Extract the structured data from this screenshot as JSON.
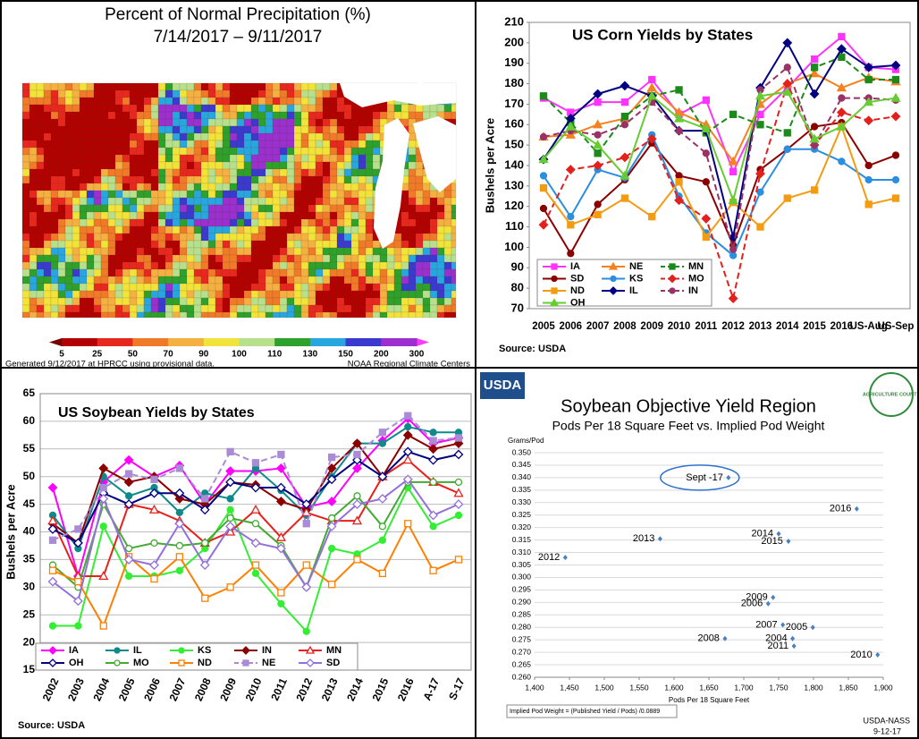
{
  "chart_data": [
    {
      "type": "map",
      "title": "Percent of Normal Precipitation (%)",
      "subtitle": "7/14/2017 – 9/11/2017",
      "colorbar": {
        "ticks": [
          5,
          25,
          50,
          70,
          90,
          100,
          110,
          130,
          150,
          200,
          300
        ],
        "colors": [
          "#7a0000",
          "#b30000",
          "#e8281e",
          "#f07a28",
          "#f5b042",
          "#f2e33a",
          "#b6e08c",
          "#2ea02c",
          "#27a6e0",
          "#3a3ad0",
          "#9b2fd0",
          "#ff38ff"
        ]
      },
      "footer_left": "Generated 9/12/2017 at HPRCC using provisional data.",
      "footer_right": "NOAA Regional Climate Centers"
    },
    {
      "type": "line",
      "title": "US Corn Yields by States",
      "y_label": "Bushels per Acre",
      "source": "Source: USDA",
      "categories": [
        "2005",
        "2006",
        "2007",
        "2008",
        "2009",
        "2010",
        "2011",
        "2012",
        "2013",
        "2014",
        "2015",
        "2016",
        "US-Aug",
        "US-Sep"
      ],
      "ylim": [
        70,
        210
      ],
      "yticks": [
        70,
        80,
        90,
        100,
        110,
        120,
        130,
        140,
        150,
        160,
        170,
        180,
        190,
        200,
        210
      ],
      "grid": false,
      "series": [
        {
          "name": "IA",
          "color": "#ff33ff",
          "marker": "square",
          "dash": false,
          "values": [
            173,
            166,
            171,
            171,
            182,
            165,
            172,
            137,
            165,
            178,
            192,
            203,
            188,
            187
          ]
        },
        {
          "name": "NE",
          "color": "#f58220",
          "marker": "triangle",
          "dash": false,
          "values": [
            154,
            155,
            160,
            163,
            178,
            166,
            160,
            142,
            170,
            180,
            185,
            178,
            183,
            181
          ]
        },
        {
          "name": "MN",
          "color": "#1a8a1a",
          "marker": "square",
          "dash": true,
          "values": [
            174,
            161,
            146,
            164,
            174,
            177,
            156,
            165,
            160,
            156,
            188,
            193,
            182,
            182
          ]
        },
        {
          "name": "SD",
          "color": "#8b0000",
          "marker": "circle",
          "dash": false,
          "values": [
            119,
            97,
            121,
            133,
            151,
            135,
            132,
            101,
            138,
            148,
            159,
            161,
            140,
            145
          ]
        },
        {
          "name": "KS",
          "color": "#2b8fe0",
          "marker": "circle",
          "dash": false,
          "values": [
            135,
            115,
            138,
            134,
            155,
            125,
            107,
            96,
            127,
            148,
            148,
            142,
            133,
            133
          ]
        },
        {
          "name": "MO",
          "color": "#e3201b",
          "marker": "diamond",
          "dash": true,
          "values": [
            111,
            138,
            140,
            144,
            153,
            123,
            114,
            75,
            136,
            180,
            150,
            166,
            162,
            164
          ]
        },
        {
          "name": "ND",
          "color": "#f39c12",
          "marker": "square",
          "dash": false,
          "values": [
            129,
            111,
            116,
            124,
            115,
            132,
            105,
            122,
            110,
            124,
            128,
            159,
            121,
            124
          ]
        },
        {
          "name": "IL",
          "color": "#000080",
          "marker": "diamond",
          "dash": false,
          "values": [
            143,
            163,
            175,
            179,
            174,
            157,
            157,
            105,
            178,
            200,
            175,
            197,
            188,
            189
          ]
        },
        {
          "name": "IN",
          "color": "#993366",
          "marker": "circle",
          "dash": true,
          "values": [
            154,
            157,
            155,
            160,
            171,
            157,
            146,
            99,
            177,
            188,
            150,
            173,
            173,
            172
          ]
        },
        {
          "name": "OH",
          "color": "#66cc33",
          "marker": "triangle",
          "dash": false,
          "values": [
            143,
            159,
            150,
            135,
            174,
            163,
            158,
            123,
            174,
            176,
            153,
            159,
            171,
            173
          ]
        }
      ]
    },
    {
      "type": "line",
      "title": "US Soybean Yields by States",
      "y_label": "Bushels per Acre",
      "source": "Source: USDA",
      "categories": [
        "2002",
        "2003",
        "2004",
        "2005",
        "2006",
        "2007",
        "2008",
        "2009",
        "2010",
        "2011",
        "2012",
        "2013",
        "2014",
        "2015",
        "2016",
        "A-17",
        "S-17"
      ],
      "ylim": [
        15,
        65
      ],
      "yticks": [
        15,
        20,
        25,
        30,
        35,
        40,
        45,
        50,
        55,
        60,
        65
      ],
      "grid": true,
      "series": [
        {
          "name": "IA",
          "color": "#ff00ff",
          "marker": "diamond",
          "dash": false,
          "values": [
            48,
            32,
            49,
            53,
            50,
            52,
            45,
            51,
            51,
            51.5,
            44.5,
            45.5,
            51.5,
            56.5,
            60.5,
            56,
            57
          ]
        },
        {
          "name": "IL",
          "color": "#0f8a8a",
          "marker": "circle",
          "dash": false,
          "values": [
            43,
            37,
            50,
            46.5,
            48,
            43.5,
            47,
            46,
            51.5,
            47.5,
            43,
            50,
            56,
            56,
            59,
            58,
            58
          ]
        },
        {
          "name": "KS",
          "color": "#33ee33",
          "marker": "circle",
          "dash": false,
          "values": [
            23,
            23,
            41,
            32,
            32,
            33,
            37,
            44,
            32.5,
            27,
            22,
            37,
            36,
            38.5,
            48,
            41,
            43
          ]
        },
        {
          "name": "IN",
          "color": "#8b0000",
          "marker": "diamond",
          "dash": false,
          "values": [
            41.5,
            38,
            51.5,
            49,
            50,
            46,
            45,
            49,
            48.5,
            45.5,
            44,
            51.5,
            56,
            50,
            57.5,
            55,
            56
          ]
        },
        {
          "name": "MN",
          "color": "#e8201a",
          "marker": "triangle",
          "dash": false,
          "values": [
            42,
            32,
            32,
            45,
            44,
            42,
            38,
            40,
            44,
            39,
            43.5,
            42,
            42,
            50,
            53,
            49,
            47
          ]
        },
        {
          "name": "OH",
          "color": "#000080",
          "marker": "diamond",
          "dash": false,
          "values": [
            40.5,
            38,
            47,
            45,
            47,
            47,
            44,
            49,
            48,
            48,
            45,
            49.5,
            53,
            50,
            54.5,
            53,
            54
          ]
        },
        {
          "name": "MO",
          "color": "#44aa33",
          "marker": "circle",
          "dash": false,
          "values": [
            34,
            30,
            45,
            37,
            38,
            37.5,
            38,
            42.5,
            41.5,
            37.5,
            30,
            42.5,
            46.5,
            41,
            49,
            49,
            49
          ]
        },
        {
          "name": "ND",
          "color": "#ff8000",
          "marker": "square",
          "dash": false,
          "values": [
            33,
            31,
            23,
            35.5,
            31.5,
            35.5,
            28,
            30,
            34,
            29,
            34,
            30.5,
            35,
            32.5,
            41.5,
            33,
            35
          ]
        },
        {
          "name": "NE",
          "color": "#a98bd6",
          "marker": "square",
          "dash": true,
          "values": [
            38.5,
            40.5,
            48,
            50.5,
            49.5,
            51.5,
            46,
            54.5,
            52.5,
            54,
            41.5,
            53.5,
            54,
            58,
            61,
            56.5,
            57
          ]
        },
        {
          "name": "SD",
          "color": "#9370db",
          "marker": "diamond",
          "dash": false,
          "values": [
            31,
            27.5,
            46,
            35,
            34,
            41.5,
            34,
            41,
            38,
            37,
            30,
            41,
            45,
            46,
            49.5,
            43,
            45
          ]
        }
      ]
    },
    {
      "type": "scatter",
      "logo_left": "USDA",
      "logo_right": "AGRICULTURE COUNTS",
      "title": "Soybean Objective Yield Region",
      "subtitle": "Pods Per 18 Square Feet vs. Implied Pod Weight",
      "y_label": "Grams/Pod",
      "x_label": "Pods Per 18 Square Feet",
      "note": "Implied Pod Weight = (Published Yield / Pods) /0.0889",
      "footer": [
        "USDA-NASS",
        "9-12-17"
      ],
      "color": "#4a7fc1",
      "highlighted_point": 0,
      "point_labels": [
        "Sept -17",
        "2016",
        "2015",
        "2014",
        "2013",
        "2012",
        "2009",
        "2006",
        "2007",
        "2005",
        "2004",
        "2011",
        "2008",
        "2010"
      ],
      "x": [
        1678,
        1862,
        1764,
        1750,
        1580,
        1444,
        1742,
        1735,
        1756,
        1799,
        1770,
        1772,
        1673,
        1892
      ],
      "values": [
        0.34,
        0.3275,
        0.3145,
        0.3175,
        0.3155,
        0.308,
        0.292,
        0.2895,
        0.281,
        0.28,
        0.2755,
        0.2725,
        0.2755,
        0.269
      ],
      "xlim": [
        1400,
        1900
      ],
      "xticks": [
        {
          "value": 1400,
          "label": "1,400"
        },
        {
          "value": 1450,
          "label": "1,450"
        },
        {
          "value": 1500,
          "label": "1,500"
        },
        {
          "value": 1550,
          "label": "1,550"
        },
        {
          "value": 1600,
          "label": "1,600"
        },
        {
          "value": 1650,
          "label": "1,650"
        },
        {
          "value": 1700,
          "label": "1,700"
        },
        {
          "value": 1750,
          "label": "1,750"
        },
        {
          "value": 1800,
          "label": "1,800"
        },
        {
          "value": 1850,
          "label": "1,850"
        },
        {
          "value": 1900,
          "label": "1,900"
        }
      ],
      "ylim": [
        0.26,
        0.35
      ],
      "yticks": [
        {
          "value": 0.26,
          "label": "0.260"
        },
        {
          "value": 0.265,
          "label": "0.265"
        },
        {
          "value": 0.27,
          "label": "0.270"
        },
        {
          "value": 0.275,
          "label": "0.275"
        },
        {
          "value": 0.28,
          "label": "0.280"
        },
        {
          "value": 0.285,
          "label": "0.285"
        },
        {
          "value": 0.29,
          "label": "0.290"
        },
        {
          "value": 0.295,
          "label": "0.295"
        },
        {
          "value": 0.3,
          "label": "0.300"
        },
        {
          "value": 0.305,
          "label": "0.305"
        },
        {
          "value": 0.31,
          "label": "0.310"
        },
        {
          "value": 0.315,
          "label": "0.315"
        },
        {
          "value": 0.32,
          "label": "0.320"
        },
        {
          "value": 0.325,
          "label": "0.325"
        },
        {
          "value": 0.33,
          "label": "0.330"
        },
        {
          "value": 0.335,
          "label": "0.335"
        },
        {
          "value": 0.34,
          "label": "0.340"
        },
        {
          "value": 0.345,
          "label": "0.345"
        },
        {
          "value": 0.35,
          "label": "0.350"
        }
      ],
      "grid": true
    }
  ]
}
